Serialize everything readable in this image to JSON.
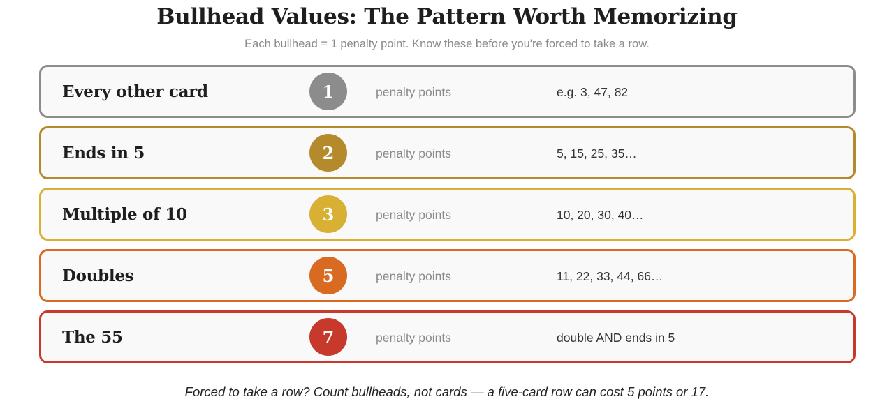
{
  "header": {
    "title": "Bullhead Values: The Pattern Worth Memorizing",
    "subtitle": "Each bullhead = 1 penalty point. Know these before you're forced to take a row."
  },
  "rows": [
    {
      "label": "Every other card",
      "points": "1",
      "unit": "penalty points",
      "examples": "e.g. 3, 47, 82",
      "color": "#8c8c8c"
    },
    {
      "label": "Ends in 5",
      "points": "2",
      "unit": "penalty points",
      "examples": "5, 15, 25, 35…",
      "color": "#b58a2c"
    },
    {
      "label": "Multiple of 10",
      "points": "3",
      "unit": "penalty points",
      "examples": "10, 20, 30, 40…",
      "color": "#d8b033"
    },
    {
      "label": "Doubles",
      "points": "5",
      "unit": "penalty points",
      "examples": "11, 22, 33, 44, 66…",
      "color": "#d96a21"
    },
    {
      "label": "The 55",
      "points": "7",
      "unit": "penalty points",
      "examples": "double AND ends in 5",
      "color": "#c6392b"
    }
  ],
  "footnote": "Forced to take a row? Count bullheads, not cards — a five-card row can cost 5 points or 17."
}
